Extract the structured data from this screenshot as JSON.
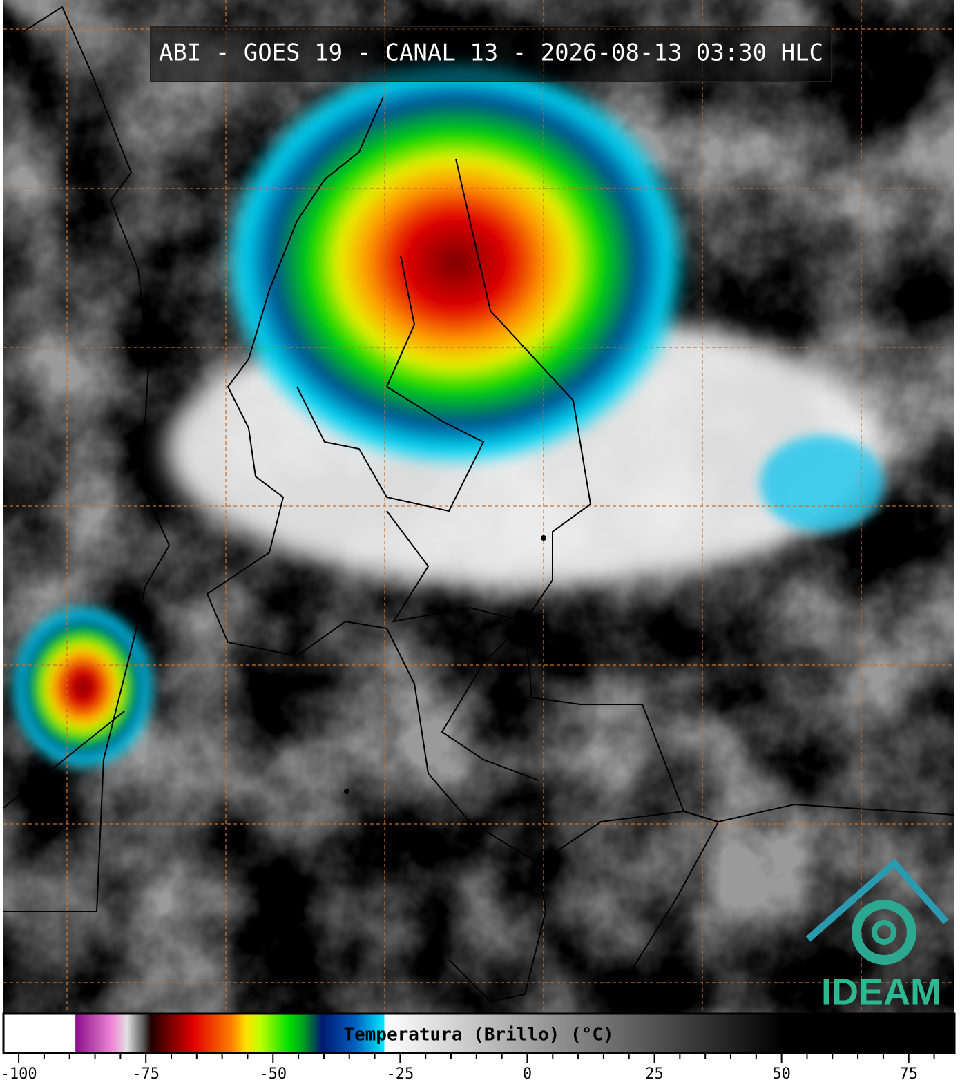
{
  "header": {
    "title": "ABI - GOES 19 - CANAL 13 - 2026-08-13 03:30 HLC"
  },
  "colorbar": {
    "label": "Temperatura (Brillo) (°C)",
    "lim": [
      -103,
      84
    ],
    "ticks": [
      -100,
      -75,
      -50,
      -25,
      0,
      25,
      50,
      75
    ],
    "minor_ticks": [
      -95,
      -90,
      -85,
      -80,
      -70,
      -65,
      -60,
      -55,
      -45,
      -40,
      -35,
      -30,
      -20,
      -15,
      -10,
      -5,
      5,
      10,
      15,
      20,
      30,
      35,
      40,
      45,
      55,
      60,
      65,
      70,
      80
    ]
  },
  "logo": {
    "text": "IDEAM"
  }
}
